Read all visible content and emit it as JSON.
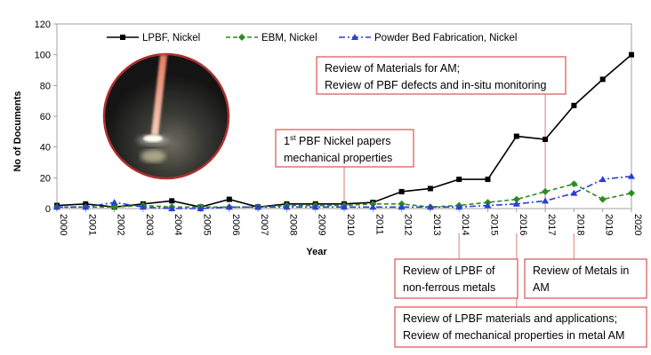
{
  "chart_data": {
    "type": "line",
    "title": "",
    "xlabel": "Year",
    "ylabel": "No of Documents",
    "x": [
      "2000",
      "2001",
      "2002",
      "2003",
      "2004",
      "2005",
      "2006",
      "2007",
      "2008",
      "2009",
      "2010",
      "2011",
      "2012",
      "2013",
      "2014",
      "2015",
      "2016",
      "2017",
      "2018",
      "2019",
      "2020"
    ],
    "ylim": [
      0,
      120
    ],
    "yticks": [
      "0",
      "20",
      "40",
      "60",
      "80",
      "100",
      "120"
    ],
    "grid": false,
    "legend_position": "top",
    "series": [
      {
        "name": "LPBF, Nickel",
        "color": "#000000",
        "dash": "solid",
        "marker": "square",
        "values": [
          2,
          3,
          1,
          3,
          5,
          1,
          6,
          1,
          3,
          3,
          3,
          4,
          11,
          13,
          19,
          19,
          47,
          45,
          67,
          84,
          100
        ]
      },
      {
        "name": "EBM, Nickel",
        "color": "#2e8b20",
        "dash": "dashed",
        "marker": "diamond",
        "values": [
          1,
          1,
          1,
          2,
          1,
          1,
          1,
          1,
          2,
          2,
          2,
          3,
          3,
          1,
          2,
          4,
          6,
          11,
          16,
          6,
          10
        ]
      },
      {
        "name": "Powder Bed Fabrication, Nickel",
        "color": "#2a3fd1",
        "dash": "dashdot",
        "marker": "triangle",
        "values": [
          1,
          1,
          4,
          1,
          0,
          0,
          1,
          1,
          1,
          1,
          1,
          1,
          1,
          1,
          1,
          2,
          3,
          5,
          10,
          19,
          21
        ]
      }
    ],
    "annotations": [
      {
        "id": "pbf-nickel-papers",
        "year": "2010",
        "lines": [
          {
            "text": "1",
            "sup": "st",
            "rest": " PBF Nickel papers"
          },
          {
            "text": "mechanical properties"
          }
        ]
      },
      {
        "id": "materials-am",
        "year": "2017",
        "lines": [
          {
            "text": "Review of Materials for AM;"
          },
          {
            "text": "Review of PBF defects and in-situ monitoring"
          }
        ]
      },
      {
        "id": "lpbf-nonferrous",
        "year": "2014",
        "lines": [
          {
            "text": "Review of LPBF of"
          },
          {
            "text": "non-ferrous metals"
          }
        ]
      },
      {
        "id": "metals-am",
        "year": "2018",
        "lines": [
          {
            "text": "Review of Metals in"
          },
          {
            "text": "AM"
          }
        ]
      },
      {
        "id": "lpbf-materials-applications",
        "year": "2016",
        "lines": [
          {
            "text": "Review of LPBF materials and applications;"
          },
          {
            "text": "Review of mechanical properties in metal AM"
          }
        ]
      }
    ]
  }
}
